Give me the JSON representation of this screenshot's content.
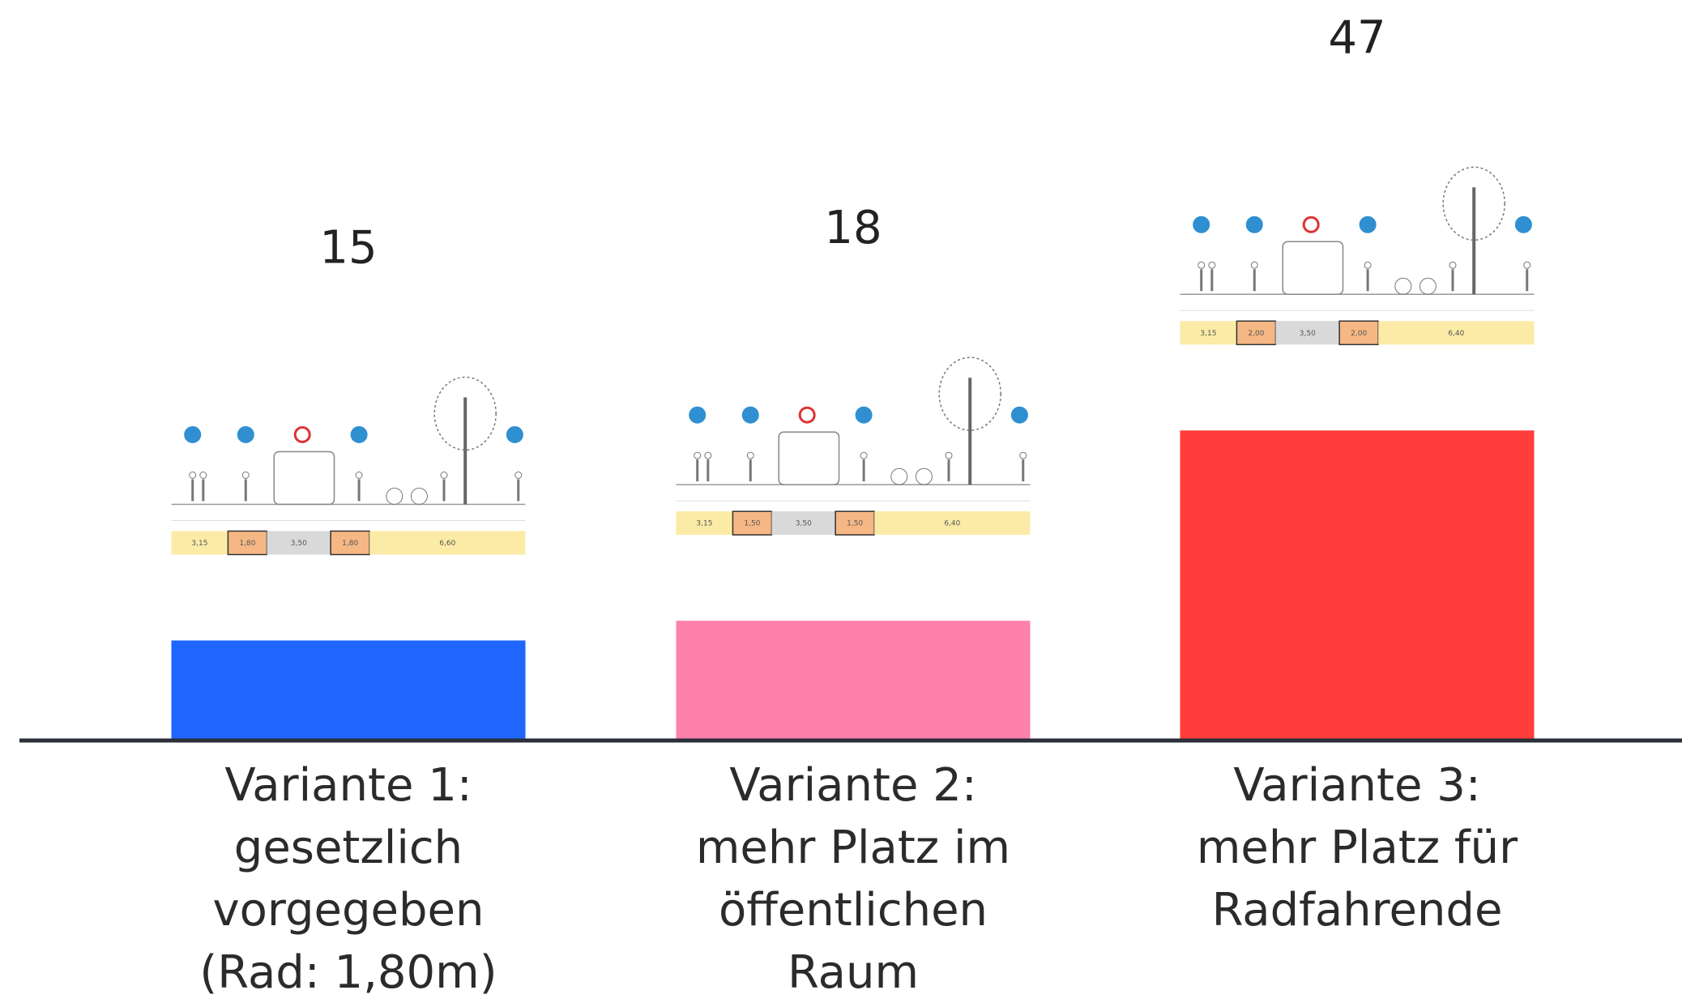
{
  "chart_data": {
    "type": "bar",
    "categories": [
      [
        "Variante 1:",
        "gesetzlich",
        "vorgegeben",
        "(Rad: 1,80m)"
      ],
      [
        "Variante 2:",
        "mehr Platz im",
        "öffentlichen",
        "Raum"
      ],
      [
        "Variante 3:",
        "mehr Platz für",
        "Radfahrende"
      ]
    ],
    "values": [
      15,
      18,
      47
    ],
    "colors": [
      "#1f66ff",
      "#ff80aa",
      "#ff3d3a"
    ],
    "profiles": [
      [
        "3,15",
        "1,80",
        "3,50",
        "1,80",
        "6,60"
      ],
      [
        "3,15",
        "1,50",
        "3,50",
        "1,50",
        "6,40"
      ],
      [
        "3,15",
        "2,00",
        "3,50",
        "2,00",
        "6,40"
      ]
    ]
  }
}
